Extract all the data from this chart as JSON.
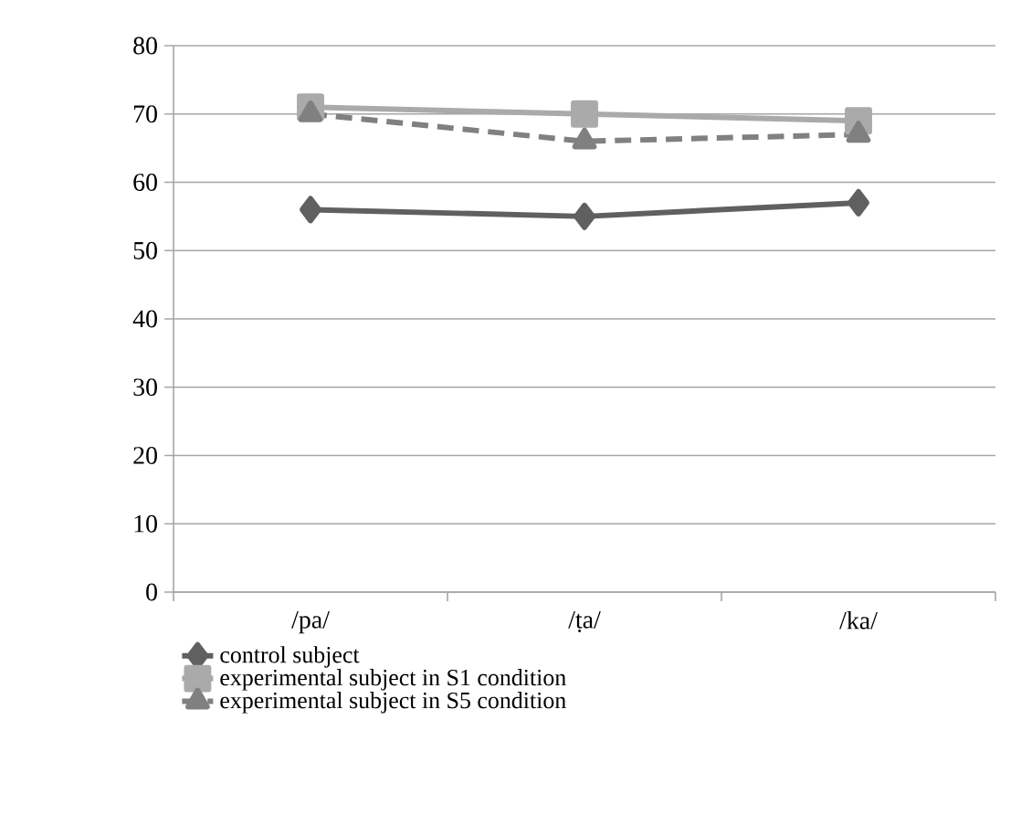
{
  "chart_data": {
    "type": "line",
    "categories": [
      "/pa/",
      "/ṭa/",
      "/ka/"
    ],
    "series": [
      {
        "name": "control subject",
        "color": "#606060",
        "values": [
          56,
          55,
          57
        ],
        "marker": "diamond",
        "line_style": "solid"
      },
      {
        "name": "experimental subject in S1 condition",
        "color": "#aaaaaa",
        "values": [
          71,
          70,
          69
        ],
        "marker": "square",
        "line_style": "solid"
      },
      {
        "name": "experimental subject in S5 condition",
        "color": "#808080",
        "values": [
          70,
          66,
          67
        ],
        "marker": "triangle",
        "line_style": "dashed"
      }
    ],
    "ylim": [
      0,
      80
    ],
    "yticks": [
      0,
      10,
      20,
      30,
      40,
      50,
      60,
      70,
      80
    ],
    "grid": "y",
    "legend": "bottom"
  }
}
